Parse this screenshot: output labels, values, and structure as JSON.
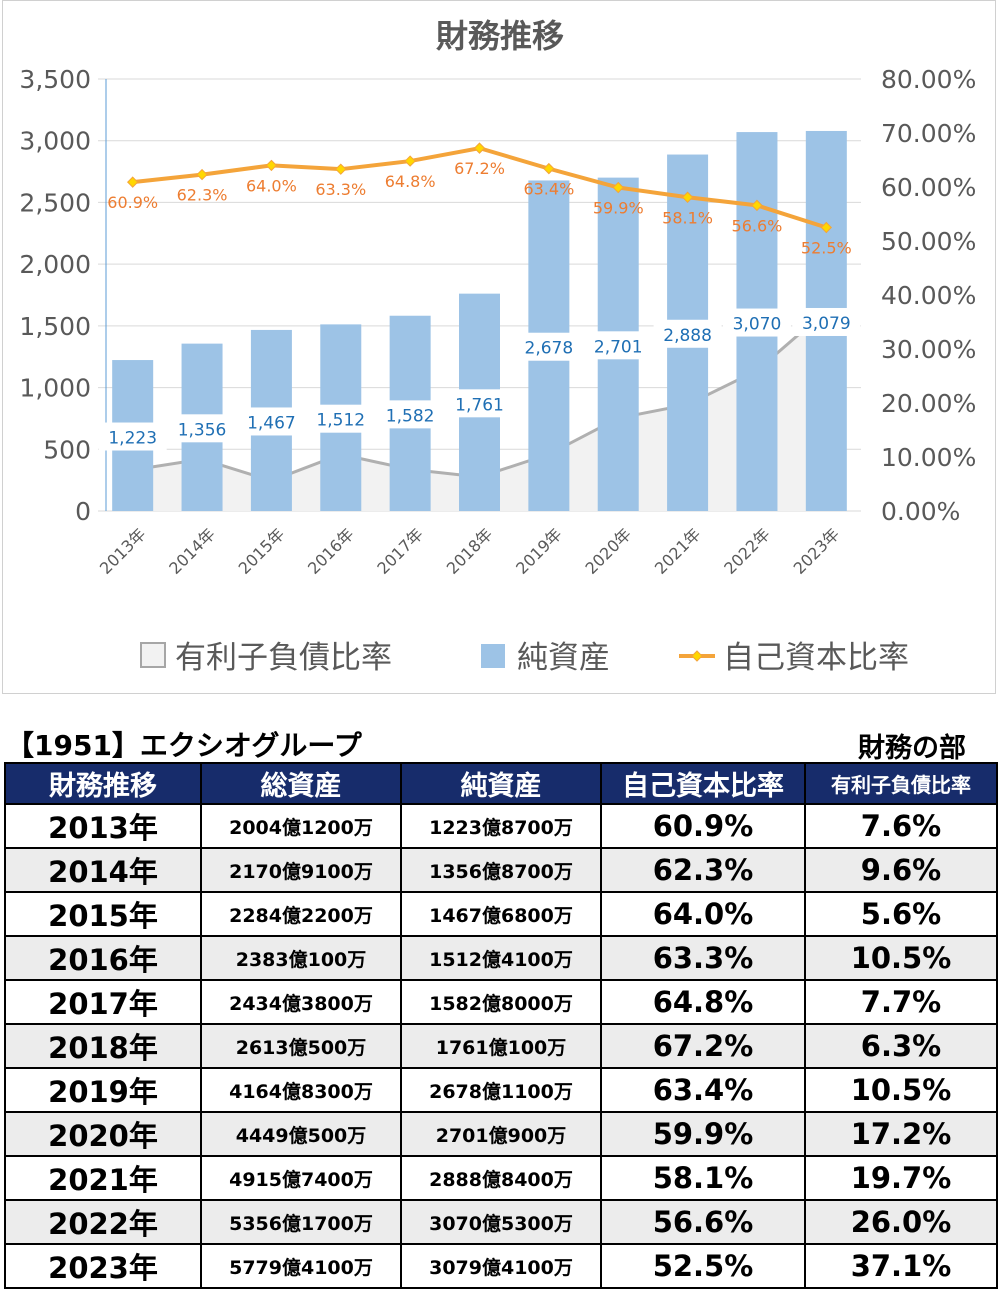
{
  "chart_data": {
    "type": "bar",
    "title": "財務推移",
    "categories": [
      "2013年",
      "2014年",
      "2015年",
      "2016年",
      "2017年",
      "2018年",
      "2019年",
      "2020年",
      "2021年",
      "2022年",
      "2023年"
    ],
    "series": [
      {
        "name": "有利子負債比率",
        "type": "area",
        "axis": "right",
        "values": [
          7.6,
          9.6,
          5.6,
          10.5,
          7.7,
          6.3,
          10.5,
          17.2,
          19.7,
          26.0,
          37.1
        ]
      },
      {
        "name": "純資産",
        "type": "bar",
        "axis": "left",
        "values": [
          1223,
          1356,
          1467,
          1512,
          1582,
          1761,
          2678,
          2701,
          2888,
          3070,
          3079
        ],
        "labels": [
          "1,223",
          "1,356",
          "1,467",
          "1,512",
          "1,582",
          "1,761",
          "2,678",
          "2,701",
          "2,888",
          "3,070",
          "3,079"
        ]
      },
      {
        "name": "自己資本比率",
        "type": "line",
        "axis": "right",
        "values": [
          60.9,
          62.3,
          64.0,
          63.3,
          64.8,
          67.2,
          63.4,
          59.9,
          58.1,
          56.6,
          52.5
        ],
        "labels": [
          "60.9%",
          "62.3%",
          "64.0%",
          "63.3%",
          "64.8%",
          "67.2%",
          "63.4%",
          "59.9%",
          "58.1%",
          "56.6%",
          "52.5%"
        ]
      }
    ],
    "y_left": {
      "range": [
        0,
        3500
      ],
      "ticks": [
        "0",
        "500",
        "1,000",
        "1,500",
        "2,000",
        "2,500",
        "3,000",
        "3,500"
      ]
    },
    "y_right": {
      "range": [
        0,
        80
      ],
      "ticks": [
        "0.00%",
        "10.00%",
        "20.00%",
        "30.00%",
        "40.00%",
        "50.00%",
        "60.00%",
        "70.00%",
        "80.00%"
      ]
    },
    "grid": true,
    "legend": "bottom",
    "colors": {
      "bar": "#9dc3e6",
      "line": "#f4a43a",
      "marker": "#ffd700",
      "area_fill": "#f2f2f2",
      "area_line": "#b0b0b0",
      "bar_label": "#1f6fb4",
      "line_label": "#ed7d31"
    }
  },
  "table": {
    "company": "【1951】エクシオグループ",
    "section": "財務の部",
    "headers": [
      "財務推移",
      "総資産",
      "純資産",
      "自己資本比率",
      "有利子負債比率"
    ],
    "rows": [
      [
        "2013年",
        "2004億1200万",
        "1223億8700万",
        "60.9%",
        "7.6%"
      ],
      [
        "2014年",
        "2170億9100万",
        "1356億8700万",
        "62.3%",
        "9.6%"
      ],
      [
        "2015年",
        "2284億2200万",
        "1467億6800万",
        "64.0%",
        "5.6%"
      ],
      [
        "2016年",
        "2383億100万",
        "1512億4100万",
        "63.3%",
        "10.5%"
      ],
      [
        "2017年",
        "2434億3800万",
        "1582億8000万",
        "64.8%",
        "7.7%"
      ],
      [
        "2018年",
        "2613億500万",
        "1761億100万",
        "67.2%",
        "6.3%"
      ],
      [
        "2019年",
        "4164億8300万",
        "2678億1100万",
        "63.4%",
        "10.5%"
      ],
      [
        "2020年",
        "4449億500万",
        "2701億900万",
        "59.9%",
        "17.2%"
      ],
      [
        "2021年",
        "4915億7400万",
        "2888億8400万",
        "58.1%",
        "19.7%"
      ],
      [
        "2022年",
        "5356億1700万",
        "3070億5300万",
        "56.6%",
        "26.0%"
      ],
      [
        "2023年",
        "5779億4100万",
        "3079億4100万",
        "52.5%",
        "37.1%"
      ]
    ]
  }
}
